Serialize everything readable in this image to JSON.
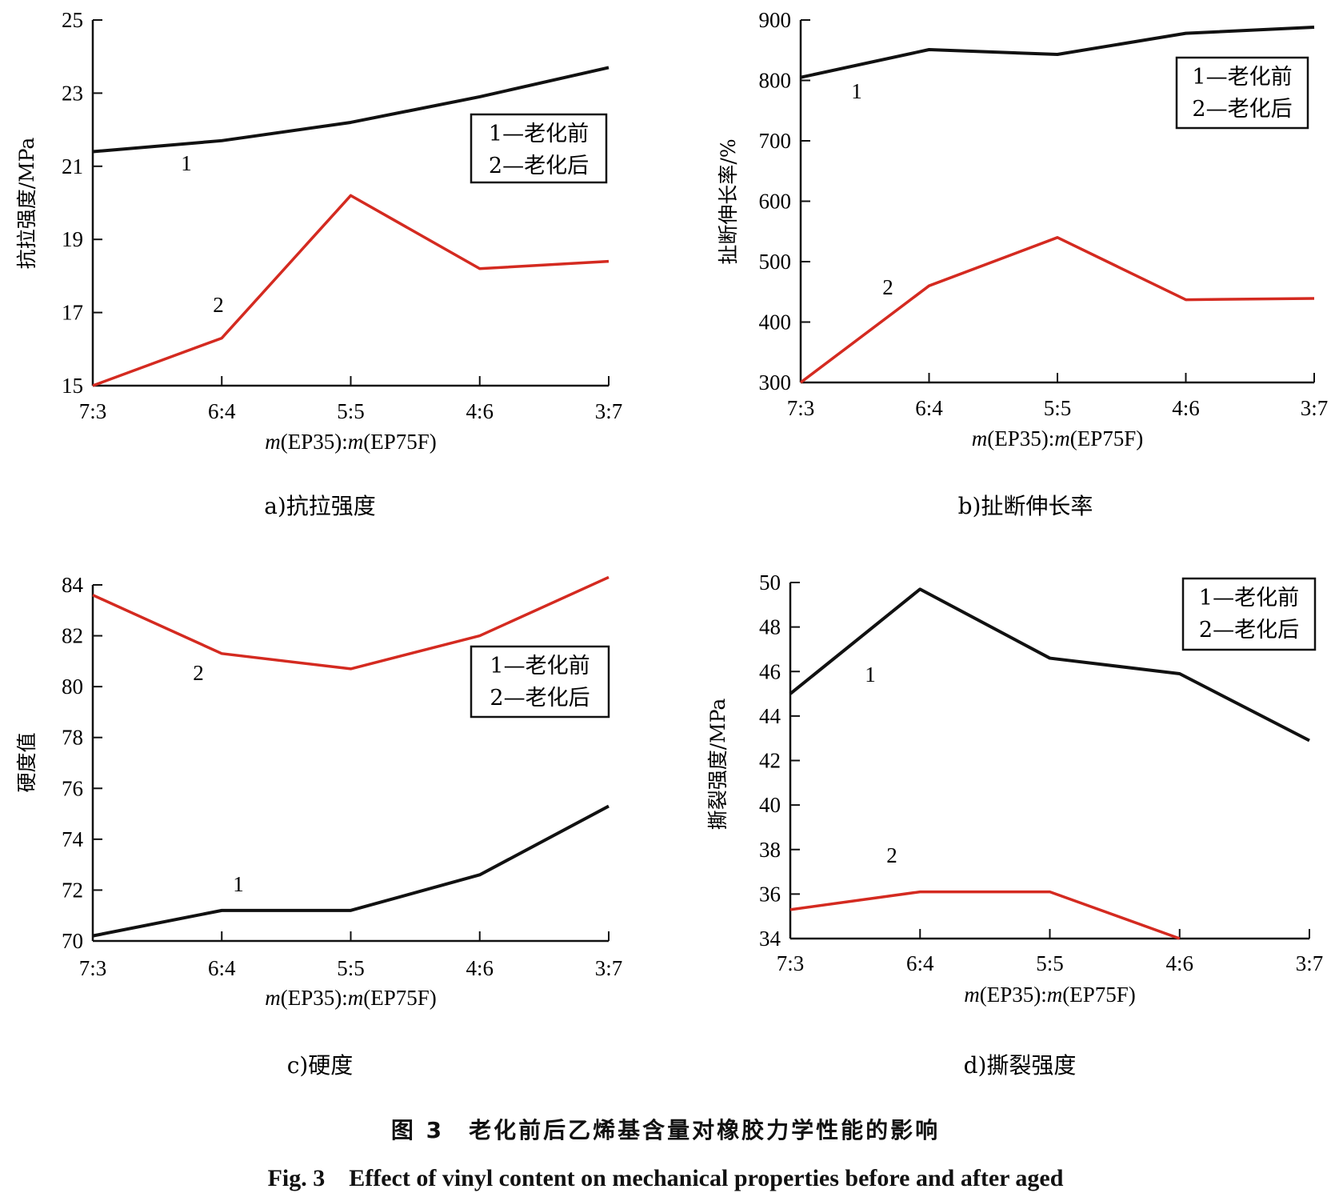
{
  "figure": {
    "caption_cn": "图 3　老化前后乙烯基含量对橡胶力学性能的影响",
    "caption_en": "Fig. 3　Effect of vinyl content on mechanical properties before and after aged"
  },
  "chart_data": [
    {
      "type": "line",
      "panel_label": "a)抗拉强度",
      "xlabel": "m(EP35):m(EP75F)",
      "ylabel": "抗拉强度/MPa",
      "categories": [
        "7:3",
        "6:4",
        "5:5",
        "4:6",
        "3:7"
      ],
      "ylim": [
        15,
        25
      ],
      "yticks": [
        15,
        17,
        19,
        21,
        23,
        25
      ],
      "legend": [
        "1—老化前",
        "2—老化后"
      ],
      "legend_position": "right",
      "series": [
        {
          "name": "1—老化前",
          "label": "1",
          "color": "#111111",
          "values": [
            21.4,
            21.7,
            22.2,
            22.9,
            23.7
          ]
        },
        {
          "name": "2—老化后",
          "label": "2",
          "color": "#d42a20",
          "values": [
            15.0,
            16.3,
            20.2,
            18.2,
            18.4
          ]
        }
      ]
    },
    {
      "type": "line",
      "panel_label": "b)扯断伸长率",
      "xlabel": "m(EP35):m(EP75F)",
      "ylabel": "扯断伸长率/%",
      "categories": [
        "7:3",
        "6:4",
        "5:5",
        "4:6",
        "3:7"
      ],
      "ylim": [
        300,
        900
      ],
      "yticks": [
        300,
        400,
        500,
        600,
        700,
        800,
        900
      ],
      "legend": [
        "1—老化前",
        "2—老化后"
      ],
      "legend_position": "top-right",
      "series": [
        {
          "name": "1—老化前",
          "label": "1",
          "color": "#111111",
          "values": [
            805,
            851,
            843,
            878,
            888
          ]
        },
        {
          "name": "2—老化后",
          "label": "2",
          "color": "#d42a20",
          "values": [
            300,
            460,
            540,
            437,
            439
          ]
        }
      ]
    },
    {
      "type": "line",
      "panel_label": "c)硬度",
      "xlabel": "m(EP35):m(EP75F)",
      "ylabel": "硬度值",
      "categories": [
        "7:3",
        "6:4",
        "5:5",
        "4:6",
        "3:7"
      ],
      "ylim": [
        70,
        84
      ],
      "yticks": [
        70,
        72,
        74,
        76,
        78,
        80,
        82,
        84
      ],
      "legend": [
        "1—老化前",
        "2—老化后"
      ],
      "legend_position": "right",
      "series": [
        {
          "name": "1—老化前",
          "label": "1",
          "color": "#111111",
          "values": [
            70.2,
            71.2,
            71.2,
            72.6,
            75.3
          ]
        },
        {
          "name": "2—老化后",
          "label": "2",
          "color": "#d42a20",
          "values": [
            83.6,
            81.3,
            80.7,
            82.0,
            84.3
          ]
        }
      ]
    },
    {
      "type": "line",
      "panel_label": "d)撕裂强度",
      "xlabel": "m(EP35):m(EP75F)",
      "ylabel": "撕裂强度/MPa",
      "categories": [
        "7:3",
        "6:4",
        "5:5",
        "4:6",
        "3:7"
      ],
      "ylim": [
        34,
        50
      ],
      "yticks": [
        34,
        36,
        38,
        40,
        42,
        44,
        46,
        48,
        50
      ],
      "legend": [
        "1—老化前",
        "2—老化后"
      ],
      "legend_position": "top-right",
      "series": [
        {
          "name": "1—老化前",
          "label": "1",
          "color": "#111111",
          "values": [
            45.0,
            49.7,
            46.6,
            45.9,
            42.9
          ]
        },
        {
          "name": "2—老化后",
          "label": "2",
          "color": "#d42a20",
          "values": [
            35.3,
            36.1,
            36.1,
            34.0,
            null
          ]
        }
      ]
    }
  ]
}
